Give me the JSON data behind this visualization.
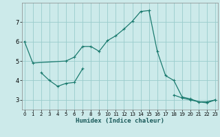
{
  "xlabel": "Humidex (Indice chaleur)",
  "bg_color": "#cceaea",
  "line_color": "#1a7a6e",
  "grid_color": "#99cccc",
  "line1_x": [
    0,
    1,
    5,
    6,
    7,
    8,
    9,
    10,
    11,
    12,
    13,
    14,
    15,
    16,
    17,
    18,
    19,
    20,
    21,
    22,
    23
  ],
  "line1_y": [
    6.0,
    4.9,
    5.0,
    5.2,
    5.75,
    5.75,
    5.5,
    6.05,
    6.3,
    6.65,
    7.05,
    7.55,
    7.6,
    5.5,
    4.25,
    4.0,
    3.15,
    3.05,
    2.9,
    2.9,
    3.0
  ],
  "line2_seg1_x": [
    2,
    3,
    4,
    5,
    6,
    7
  ],
  "line2_seg1_y": [
    4.4,
    4.0,
    3.7,
    3.85,
    3.9,
    4.6
  ],
  "line2_seg2_x": [
    18,
    19,
    20,
    21,
    22,
    23
  ],
  "line2_seg2_y": [
    3.25,
    3.1,
    3.0,
    2.9,
    2.85,
    3.0
  ],
  "xlim": [
    -0.3,
    23.3
  ],
  "ylim": [
    2.5,
    8.0
  ],
  "yticks": [
    3,
    4,
    5,
    6,
    7
  ],
  "xticks": [
    0,
    1,
    2,
    3,
    4,
    5,
    6,
    7,
    8,
    9,
    10,
    11,
    12,
    13,
    14,
    15,
    16,
    17,
    18,
    19,
    20,
    21,
    22,
    23
  ]
}
